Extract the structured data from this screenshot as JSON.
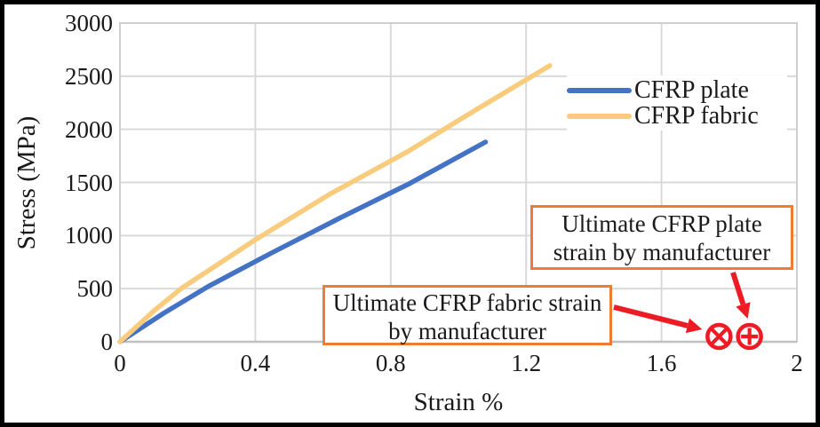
{
  "figure": {
    "outer_border_color": "#000000",
    "background_color": "#ffffff"
  },
  "chart_data": {
    "type": "line",
    "title": "",
    "xlabel": "Strain %",
    "ylabel": "Stress (MPa)",
    "xlim": [
      0,
      2
    ],
    "ylim": [
      0,
      3000
    ],
    "x_ticks": [
      "0",
      "0.4",
      "0.8",
      "1.2",
      "1.6",
      "2"
    ],
    "x_tick_values": [
      0,
      0.4,
      0.8,
      1.2,
      1.6,
      2
    ],
    "y_ticks": [
      "0",
      "500",
      "1000",
      "1500",
      "2000",
      "2500",
      "3000"
    ],
    "y_tick_values": [
      0,
      500,
      1000,
      1500,
      2000,
      2500,
      3000
    ],
    "grid": true,
    "gridline_color": "#d9d9d9",
    "plot_border_color": "#cfcfcf",
    "legend_position": "inside-top-right",
    "series": [
      {
        "name": "CFRP plate",
        "color": "#4472C4",
        "points": [
          [
            0,
            0
          ],
          [
            0.13,
            270
          ],
          [
            0.26,
            520
          ],
          [
            0.45,
            840
          ],
          [
            0.65,
            1165
          ],
          [
            0.85,
            1480
          ],
          [
            1.08,
            1880
          ]
        ]
      },
      {
        "name": "CFRP fabric",
        "color": "#F8CC7C",
        "points": [
          [
            0,
            0
          ],
          [
            0.1,
            290
          ],
          [
            0.18,
            500
          ],
          [
            0.4,
            960
          ],
          [
            0.62,
            1390
          ],
          [
            0.85,
            1790
          ],
          [
            1.05,
            2180
          ],
          [
            1.27,
            2600
          ]
        ]
      }
    ],
    "markers": [
      {
        "id": "fabric-ultimate",
        "symbol": "circle-x",
        "x": 1.77,
        "y": 50,
        "color": "#ED1C24"
      },
      {
        "id": "plate-ultimate",
        "symbol": "circle-plus",
        "x": 1.86,
        "y": 50,
        "color": "#ED1C24"
      }
    ],
    "annotations": {
      "border_color": "#ED7D31",
      "arrow_color": "#ED1C24",
      "plate": {
        "line1": "Ultimate CFRP plate",
        "line2": "strain by manufacturer"
      },
      "fabric": {
        "line1": "Ultimate CFRP fabric strain",
        "line2": "by manufacturer"
      }
    }
  }
}
